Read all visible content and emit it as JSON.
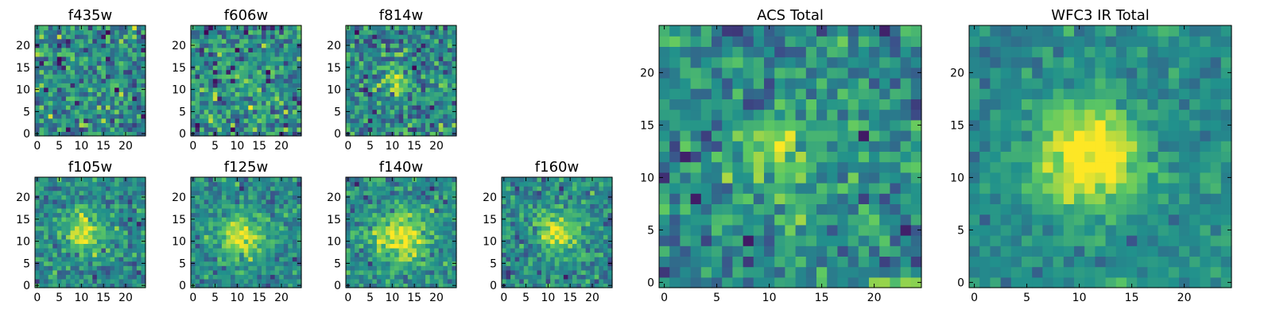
{
  "figure_title": "",
  "chart_data": [
    {
      "type": "heatmap",
      "title": "f435w",
      "xlabel": "",
      "ylabel": "",
      "xlim": [
        -0.5,
        24.5
      ],
      "ylim": [
        -0.5,
        24.5
      ],
      "xticks": [
        "0",
        "5",
        "10",
        "15",
        "20"
      ],
      "yticks": [
        "0",
        "5",
        "10",
        "15",
        "20"
      ],
      "grid_size": 25,
      "colormap": "viridis",
      "peak_center": [
        12,
        12
      ],
      "peak_strength": 0.05,
      "peak_sigma": 3.0,
      "noise": 0.3,
      "seed": 11
    },
    {
      "type": "heatmap",
      "title": "f606w",
      "xlabel": "",
      "ylabel": "",
      "xlim": [
        -0.5,
        24.5
      ],
      "ylim": [
        -0.5,
        24.5
      ],
      "xticks": [
        "0",
        "5",
        "10",
        "15",
        "20"
      ],
      "yticks": [
        "0",
        "5",
        "10",
        "15",
        "20"
      ],
      "grid_size": 25,
      "colormap": "viridis",
      "peak_center": [
        12,
        12
      ],
      "peak_strength": 0.12,
      "peak_sigma": 3.0,
      "noise": 0.3,
      "seed": 23
    },
    {
      "type": "heatmap",
      "title": "f814w",
      "xlabel": "",
      "ylabel": "",
      "xlim": [
        -0.5,
        24.5
      ],
      "ylim": [
        -0.5,
        24.5
      ],
      "xticks": [
        "0",
        "5",
        "10",
        "15",
        "20"
      ],
      "yticks": [
        "0",
        "5",
        "10",
        "15",
        "20"
      ],
      "grid_size": 25,
      "colormap": "viridis",
      "peak_center": [
        11,
        12
      ],
      "peak_strength": 0.3,
      "peak_sigma": 2.0,
      "noise": 0.28,
      "seed": 37
    },
    {
      "type": "heatmap",
      "title": "f105w",
      "xlabel": "",
      "ylabel": "",
      "xlim": [
        -0.5,
        24.5
      ],
      "ylim": [
        -0.5,
        24.5
      ],
      "xticks": [
        "0",
        "5",
        "10",
        "15",
        "20"
      ],
      "yticks": [
        "0",
        "5",
        "10",
        "15",
        "20"
      ],
      "grid_size": 25,
      "colormap": "viridis",
      "peak_center": [
        11,
        12
      ],
      "peak_strength": 0.45,
      "peak_sigma": 3.0,
      "noise": 0.22,
      "seed": 41
    },
    {
      "type": "heatmap",
      "title": "f125w",
      "xlabel": "",
      "ylabel": "",
      "xlim": [
        -0.5,
        24.5
      ],
      "ylim": [
        -0.5,
        24.5
      ],
      "xticks": [
        "0",
        "5",
        "10",
        "15",
        "20"
      ],
      "yticks": [
        "0",
        "5",
        "10",
        "15",
        "20"
      ],
      "grid_size": 25,
      "colormap": "viridis",
      "peak_center": [
        11,
        11
      ],
      "peak_strength": 0.45,
      "peak_sigma": 3.5,
      "noise": 0.2,
      "seed": 53
    },
    {
      "type": "heatmap",
      "title": "f140w",
      "xlabel": "",
      "ylabel": "",
      "xlim": [
        -0.5,
        24.5
      ],
      "ylim": [
        -0.5,
        24.5
      ],
      "xticks": [
        "0",
        "5",
        "10",
        "15",
        "20"
      ],
      "yticks": [
        "0",
        "5",
        "10",
        "15",
        "20"
      ],
      "grid_size": 25,
      "colormap": "viridis",
      "peak_center": [
        12,
        11
      ],
      "peak_strength": 0.45,
      "peak_sigma": 4.0,
      "noise": 0.2,
      "seed": 67
    },
    {
      "type": "heatmap",
      "title": "f160w",
      "xlabel": "",
      "ylabel": "",
      "xlim": [
        -0.5,
        24.5
      ],
      "ylim": [
        -0.5,
        24.5
      ],
      "xticks": [
        "0",
        "5",
        "10",
        "15",
        "20"
      ],
      "yticks": [
        "0",
        "5",
        "10",
        "15",
        "20"
      ],
      "grid_size": 25,
      "colormap": "viridis",
      "peak_center": [
        12,
        12
      ],
      "peak_strength": 0.5,
      "peak_sigma": 3.0,
      "noise": 0.22,
      "seed": 79
    },
    {
      "type": "heatmap",
      "title": "ACS Total",
      "xlabel": "",
      "ylabel": "",
      "xlim": [
        -0.5,
        24.5
      ],
      "ylim": [
        -0.5,
        24.5
      ],
      "xticks": [
        "0",
        "5",
        "10",
        "15",
        "20"
      ],
      "yticks": [
        "0",
        "5",
        "10",
        "15",
        "20"
      ],
      "grid_size": 25,
      "colormap": "viridis",
      "peak_center": [
        11,
        12
      ],
      "peak_strength": 0.3,
      "peak_sigma": 3.0,
      "noise": 0.25,
      "seed": 83
    },
    {
      "type": "heatmap",
      "title": "WFC3 IR Total",
      "xlabel": "",
      "ylabel": "",
      "xlim": [
        -0.5,
        24.5
      ],
      "ylim": [
        -0.5,
        24.5
      ],
      "xticks": [
        "0",
        "5",
        "10",
        "15",
        "20"
      ],
      "yticks": [
        "0",
        "5",
        "10",
        "15",
        "20"
      ],
      "grid_size": 25,
      "colormap": "viridis",
      "peak_center": [
        11,
        12
      ],
      "peak_strength": 0.6,
      "peak_sigma": 3.5,
      "noise": 0.14,
      "seed": 97
    }
  ],
  "colormap_stops": [
    "#440154",
    "#3b528b",
    "#21918c",
    "#5ec962",
    "#fde725"
  ]
}
